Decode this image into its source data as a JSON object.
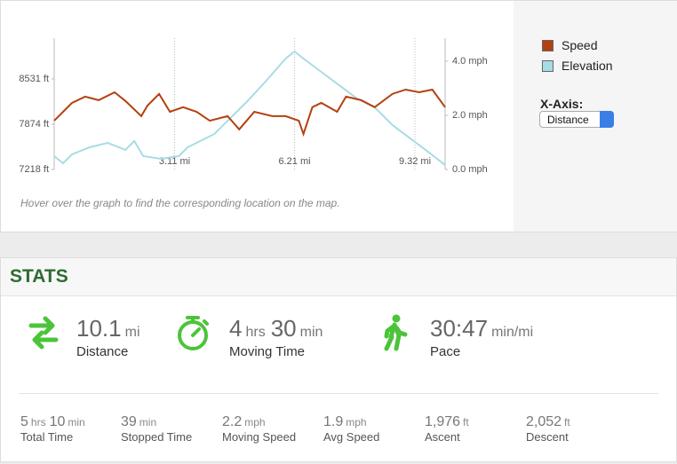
{
  "chart_data": {
    "type": "line",
    "xlim": [
      0,
      10.1
    ],
    "xticks": [
      {
        "value": 3.11,
        "label": "3.11 mi"
      },
      {
        "value": 6.21,
        "label": "6.21 mi"
      },
      {
        "value": 9.32,
        "label": "9.32 mi"
      }
    ],
    "ylim": [
      7218,
      9123
    ],
    "yticks": [
      {
        "value": 7218,
        "label": "7218 ft"
      },
      {
        "value": 7874,
        "label": "7874 ft"
      },
      {
        "value": 8531,
        "label": "8531 ft"
      }
    ],
    "y2lim": [
      0,
      4.85
    ],
    "y2ticks": [
      {
        "value": 0,
        "label": "0.0 mph"
      },
      {
        "value": 2,
        "label": "2.0 mph"
      },
      {
        "value": 4,
        "label": "4.0 mph"
      }
    ],
    "series": [
      {
        "name": "Speed",
        "color": "#b5400f",
        "axis": "y2",
        "x": [
          0,
          0.23,
          0.46,
          0.8,
          1.15,
          1.56,
          1.84,
          2.25,
          2.41,
          2.71,
          2.99,
          3.33,
          3.68,
          4.02,
          4.48,
          4.78,
          5.17,
          5.63,
          5.98,
          6.32,
          6.44,
          6.67,
          6.9,
          7.31,
          7.54,
          7.93,
          8.28,
          8.74,
          9.08,
          9.43,
          9.77,
          10.1
        ],
        "values": [
          1.8,
          2.13,
          2.46,
          2.69,
          2.56,
          2.85,
          2.53,
          1.97,
          2.36,
          2.79,
          2.13,
          2.3,
          2.13,
          1.8,
          1.97,
          1.48,
          2.13,
          1.97,
          1.97,
          1.8,
          1.31,
          2.3,
          2.46,
          2.13,
          2.69,
          2.56,
          2.3,
          2.79,
          2.95,
          2.85,
          2.95,
          2.3
        ]
      },
      {
        "name": "Elevation",
        "color": "#a8dce3",
        "x": [
          0,
          0.23,
          0.46,
          0.92,
          1.38,
          1.84,
          2.07,
          2.3,
          2.76,
          3.22,
          3.45,
          3.68,
          4.14,
          4.6,
          5.06,
          5.52,
          5.98,
          6.21,
          6.44,
          6.9,
          7.36,
          7.82,
          8.28,
          8.74,
          9.2,
          9.66,
          10.1
        ],
        "values": [
          7411,
          7308,
          7437,
          7540,
          7604,
          7501,
          7630,
          7411,
          7372,
          7411,
          7540,
          7604,
          7733,
          7990,
          8248,
          8531,
          8827,
          8930,
          8827,
          8634,
          8441,
          8248,
          8119,
          7862,
          7668,
          7475,
          7282
        ]
      }
    ],
    "note": "Hover over the graph to find the corresponding location on the map.",
    "x_axis_label": "X-Axis:",
    "x_axis_option": "Distance"
  },
  "stats": {
    "title": "STATS",
    "main": [
      {
        "parts": [
          {
            "num": "10.1",
            "unit": "mi"
          }
        ],
        "label": "Distance"
      },
      {
        "parts": [
          {
            "num": "4",
            "unit": "hrs"
          },
          {
            "num": "30",
            "unit": "min"
          }
        ],
        "label": "Moving Time"
      },
      {
        "parts": [
          {
            "num": "30:47",
            "unit": "min/mi"
          }
        ],
        "label": "Pace"
      }
    ],
    "secondary": [
      {
        "parts": [
          {
            "num": "5",
            "unit": "hrs"
          },
          {
            "num": "10",
            "unit": "min"
          }
        ],
        "label": "Total Time"
      },
      {
        "parts": [
          {
            "num": "39",
            "unit": "min"
          }
        ],
        "label": "Stopped Time"
      },
      {
        "parts": [
          {
            "num": "2.2",
            "unit": "mph"
          }
        ],
        "label": "Moving Speed"
      },
      {
        "parts": [
          {
            "num": "1.9",
            "unit": "mph"
          }
        ],
        "label": "Avg Speed"
      },
      {
        "parts": [
          {
            "num": "1,976",
            "unit": "ft"
          }
        ],
        "label": "Ascent"
      },
      {
        "parts": [
          {
            "num": "2,052",
            "unit": "ft"
          }
        ],
        "label": "Descent"
      }
    ]
  }
}
